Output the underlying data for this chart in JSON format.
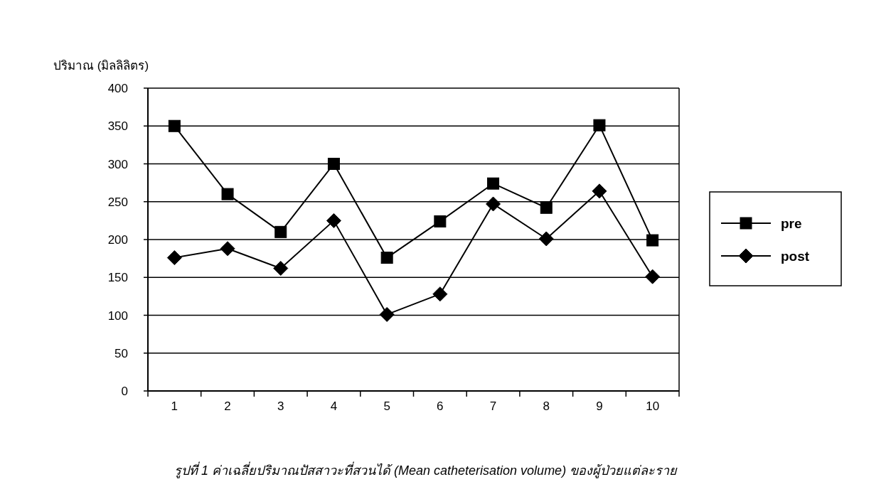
{
  "chart_data": {
    "type": "line",
    "ylabel": "ปริมาณ (มิลลิลิตร)",
    "annotations": [
      "รูปที่ 1  ค่าเฉลี่ยปริมาณปัสสาวะที่สวนได้ (Mean catheterisation volume) ของผู้ป่วยแต่ละราย"
    ],
    "categories": [
      "1",
      "2",
      "3",
      "4",
      "5",
      "6",
      "7",
      "8",
      "9",
      "10"
    ],
    "series": [
      {
        "name": "pre",
        "color": "#000000",
        "marker": "square",
        "values": [
          350,
          260,
          210,
          300,
          176,
          224,
          274,
          242,
          351,
          199
        ]
      },
      {
        "name": "post",
        "color": "#000000",
        "marker": "diamond",
        "values": [
          176,
          188,
          162,
          225,
          101,
          128,
          247,
          201,
          264,
          151
        ]
      }
    ],
    "ylim": [
      0,
      400
    ],
    "yticks": [
      0,
      50,
      100,
      150,
      200,
      250,
      300,
      350,
      400
    ],
    "grid": "y",
    "legend": "right"
  }
}
